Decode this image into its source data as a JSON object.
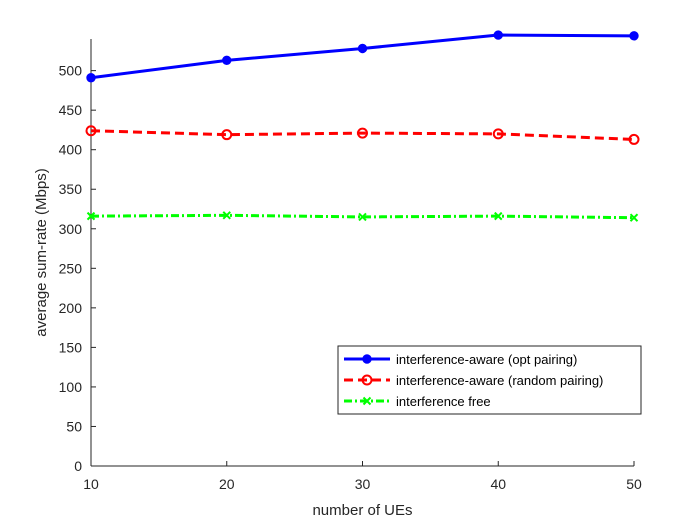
{
  "chart_data": {
    "type": "line",
    "xlabel": "number of UEs",
    "ylabel": "average sum-rate (Mbps)",
    "x": [
      10,
      20,
      30,
      40,
      50
    ],
    "xlim": [
      10,
      50
    ],
    "ylim": [
      0,
      540
    ],
    "xticks": [
      "10",
      "20",
      "30",
      "40",
      "50"
    ],
    "yticks": [
      "0",
      "50",
      "100",
      "150",
      "200",
      "250",
      "300",
      "350",
      "400",
      "450",
      "500"
    ],
    "grid": false,
    "legend_position": "bottom-right",
    "series": [
      {
        "name": "interference-aware (opt pairing)",
        "values": [
          491,
          513,
          528,
          545,
          544
        ],
        "color": "#0000ff",
        "line_style": "solid",
        "marker": "filled-circle"
      },
      {
        "name": "interference-aware (random pairing)",
        "values": [
          424,
          419,
          421,
          420,
          413
        ],
        "color": "#ff0000",
        "line_style": "dashed",
        "marker": "open-circle"
      },
      {
        "name": "interference free",
        "values": [
          316,
          317,
          315,
          316,
          314
        ],
        "color": "#00ff00",
        "line_style": "dash-dot",
        "marker": "x"
      }
    ]
  }
}
